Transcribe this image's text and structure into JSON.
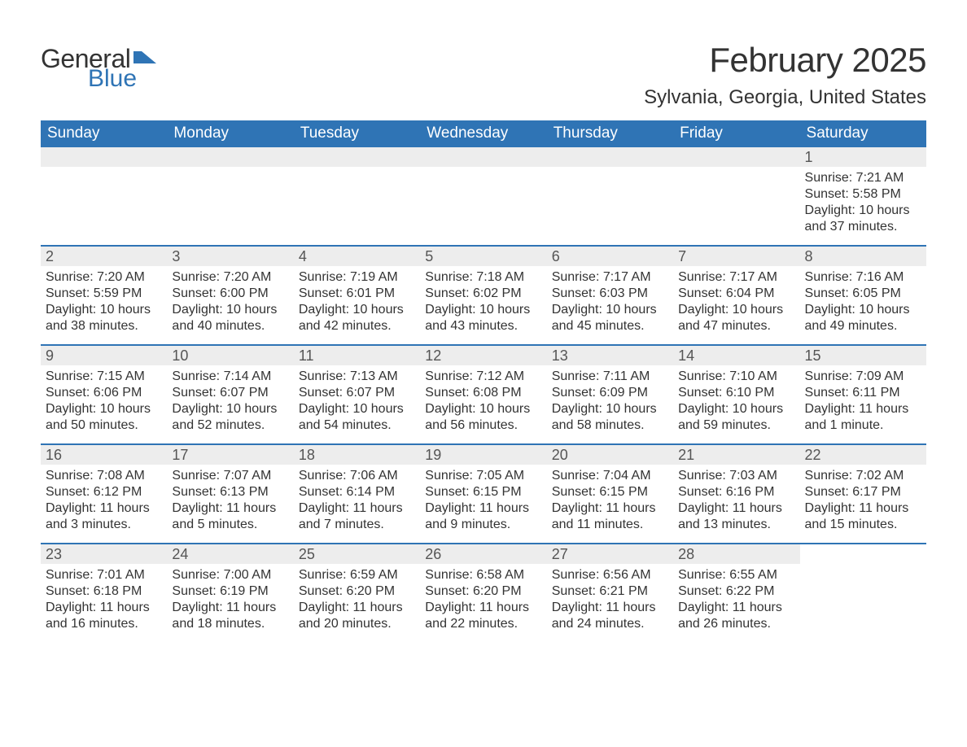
{
  "logo": {
    "text1": "General",
    "text2": "Blue",
    "icon_color": "#2f74b5"
  },
  "title": "February 2025",
  "location": "Sylvania, Georgia, United States",
  "colors": {
    "header_bg": "#2f74b5",
    "header_text": "#ffffff",
    "daynum_bg": "#ededed",
    "row_border": "#2f74b5",
    "body_text": "#333333"
  },
  "day_names": [
    "Sunday",
    "Monday",
    "Tuesday",
    "Wednesday",
    "Thursday",
    "Friday",
    "Saturday"
  ],
  "weeks": [
    [
      {
        "empty": true
      },
      {
        "empty": true
      },
      {
        "empty": true
      },
      {
        "empty": true
      },
      {
        "empty": true
      },
      {
        "empty": true
      },
      {
        "day": "1",
        "sunrise": "Sunrise: 7:21 AM",
        "sunset": "Sunset: 5:58 PM",
        "dl1": "Daylight: 10 hours",
        "dl2": "and 37 minutes."
      }
    ],
    [
      {
        "day": "2",
        "sunrise": "Sunrise: 7:20 AM",
        "sunset": "Sunset: 5:59 PM",
        "dl1": "Daylight: 10 hours",
        "dl2": "and 38 minutes."
      },
      {
        "day": "3",
        "sunrise": "Sunrise: 7:20 AM",
        "sunset": "Sunset: 6:00 PM",
        "dl1": "Daylight: 10 hours",
        "dl2": "and 40 minutes."
      },
      {
        "day": "4",
        "sunrise": "Sunrise: 7:19 AM",
        "sunset": "Sunset: 6:01 PM",
        "dl1": "Daylight: 10 hours",
        "dl2": "and 42 minutes."
      },
      {
        "day": "5",
        "sunrise": "Sunrise: 7:18 AM",
        "sunset": "Sunset: 6:02 PM",
        "dl1": "Daylight: 10 hours",
        "dl2": "and 43 minutes."
      },
      {
        "day": "6",
        "sunrise": "Sunrise: 7:17 AM",
        "sunset": "Sunset: 6:03 PM",
        "dl1": "Daylight: 10 hours",
        "dl2": "and 45 minutes."
      },
      {
        "day": "7",
        "sunrise": "Sunrise: 7:17 AM",
        "sunset": "Sunset: 6:04 PM",
        "dl1": "Daylight: 10 hours",
        "dl2": "and 47 minutes."
      },
      {
        "day": "8",
        "sunrise": "Sunrise: 7:16 AM",
        "sunset": "Sunset: 6:05 PM",
        "dl1": "Daylight: 10 hours",
        "dl2": "and 49 minutes."
      }
    ],
    [
      {
        "day": "9",
        "sunrise": "Sunrise: 7:15 AM",
        "sunset": "Sunset: 6:06 PM",
        "dl1": "Daylight: 10 hours",
        "dl2": "and 50 minutes."
      },
      {
        "day": "10",
        "sunrise": "Sunrise: 7:14 AM",
        "sunset": "Sunset: 6:07 PM",
        "dl1": "Daylight: 10 hours",
        "dl2": "and 52 minutes."
      },
      {
        "day": "11",
        "sunrise": "Sunrise: 7:13 AM",
        "sunset": "Sunset: 6:07 PM",
        "dl1": "Daylight: 10 hours",
        "dl2": "and 54 minutes."
      },
      {
        "day": "12",
        "sunrise": "Sunrise: 7:12 AM",
        "sunset": "Sunset: 6:08 PM",
        "dl1": "Daylight: 10 hours",
        "dl2": "and 56 minutes."
      },
      {
        "day": "13",
        "sunrise": "Sunrise: 7:11 AM",
        "sunset": "Sunset: 6:09 PM",
        "dl1": "Daylight: 10 hours",
        "dl2": "and 58 minutes."
      },
      {
        "day": "14",
        "sunrise": "Sunrise: 7:10 AM",
        "sunset": "Sunset: 6:10 PM",
        "dl1": "Daylight: 10 hours",
        "dl2": "and 59 minutes."
      },
      {
        "day": "15",
        "sunrise": "Sunrise: 7:09 AM",
        "sunset": "Sunset: 6:11 PM",
        "dl1": "Daylight: 11 hours",
        "dl2": "and 1 minute."
      }
    ],
    [
      {
        "day": "16",
        "sunrise": "Sunrise: 7:08 AM",
        "sunset": "Sunset: 6:12 PM",
        "dl1": "Daylight: 11 hours",
        "dl2": "and 3 minutes."
      },
      {
        "day": "17",
        "sunrise": "Sunrise: 7:07 AM",
        "sunset": "Sunset: 6:13 PM",
        "dl1": "Daylight: 11 hours",
        "dl2": "and 5 minutes."
      },
      {
        "day": "18",
        "sunrise": "Sunrise: 7:06 AM",
        "sunset": "Sunset: 6:14 PM",
        "dl1": "Daylight: 11 hours",
        "dl2": "and 7 minutes."
      },
      {
        "day": "19",
        "sunrise": "Sunrise: 7:05 AM",
        "sunset": "Sunset: 6:15 PM",
        "dl1": "Daylight: 11 hours",
        "dl2": "and 9 minutes."
      },
      {
        "day": "20",
        "sunrise": "Sunrise: 7:04 AM",
        "sunset": "Sunset: 6:15 PM",
        "dl1": "Daylight: 11 hours",
        "dl2": "and 11 minutes."
      },
      {
        "day": "21",
        "sunrise": "Sunrise: 7:03 AM",
        "sunset": "Sunset: 6:16 PM",
        "dl1": "Daylight: 11 hours",
        "dl2": "and 13 minutes."
      },
      {
        "day": "22",
        "sunrise": "Sunrise: 7:02 AM",
        "sunset": "Sunset: 6:17 PM",
        "dl1": "Daylight: 11 hours",
        "dl2": "and 15 minutes."
      }
    ],
    [
      {
        "day": "23",
        "sunrise": "Sunrise: 7:01 AM",
        "sunset": "Sunset: 6:18 PM",
        "dl1": "Daylight: 11 hours",
        "dl2": "and 16 minutes."
      },
      {
        "day": "24",
        "sunrise": "Sunrise: 7:00 AM",
        "sunset": "Sunset: 6:19 PM",
        "dl1": "Daylight: 11 hours",
        "dl2": "and 18 minutes."
      },
      {
        "day": "25",
        "sunrise": "Sunrise: 6:59 AM",
        "sunset": "Sunset: 6:20 PM",
        "dl1": "Daylight: 11 hours",
        "dl2": "and 20 minutes."
      },
      {
        "day": "26",
        "sunrise": "Sunrise: 6:58 AM",
        "sunset": "Sunset: 6:20 PM",
        "dl1": "Daylight: 11 hours",
        "dl2": "and 22 minutes."
      },
      {
        "day": "27",
        "sunrise": "Sunrise: 6:56 AM",
        "sunset": "Sunset: 6:21 PM",
        "dl1": "Daylight: 11 hours",
        "dl2": "and 24 minutes."
      },
      {
        "day": "28",
        "sunrise": "Sunrise: 6:55 AM",
        "sunset": "Sunset: 6:22 PM",
        "dl1": "Daylight: 11 hours",
        "dl2": "and 26 minutes."
      },
      {
        "empty": true,
        "trailing": true
      }
    ]
  ]
}
